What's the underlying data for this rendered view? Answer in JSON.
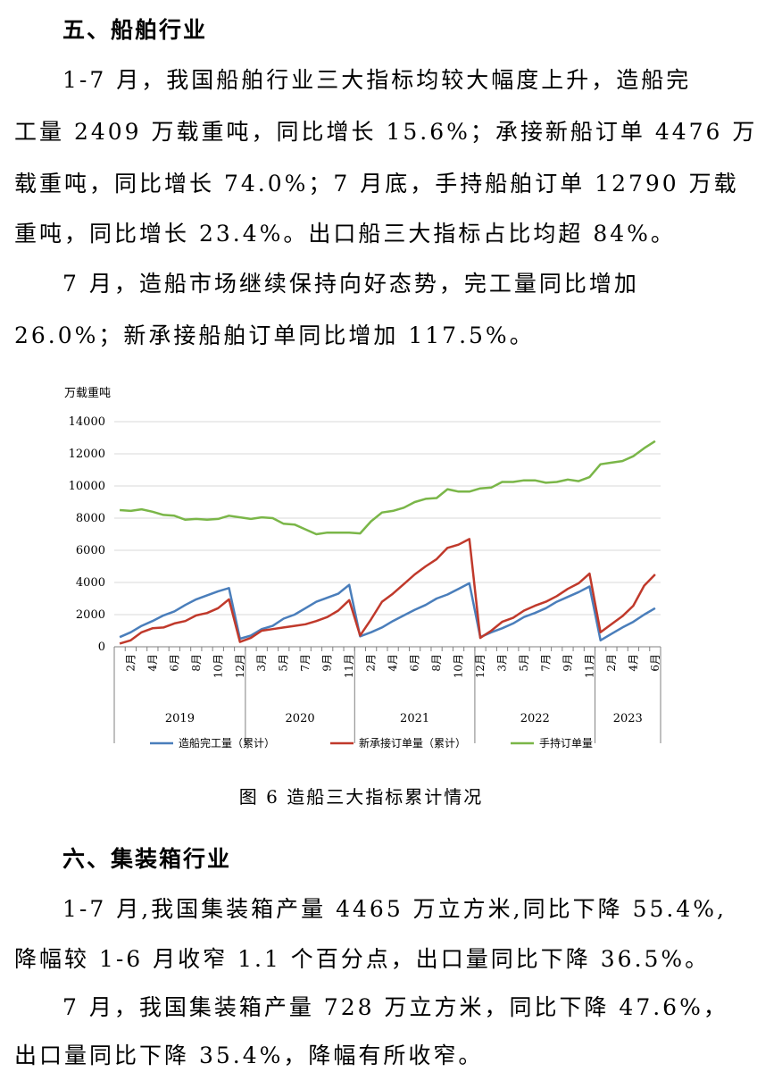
{
  "section5": {
    "title": "五、船舶行业",
    "p1": [
      "1-7 月，我国船舶行业三大指标均较大幅度上升，造船完",
      "工量 2409 万载重吨，同比增长 15.6%；承接新船订单 4476 万",
      "载重吨，同比增长 74.0%；7 月底，手持船舶订单 12790 万载",
      "重吨，同比增长 23.4%。出口船三大指标占比均超 84%。"
    ],
    "p2": [
      "7 月，造船市场继续保持向好态势，完工量同比增加",
      "26.0%；新承接船舶订单同比增加 117.5%。"
    ]
  },
  "figure": {
    "caption": "图 6  造船三大指标累计情况"
  },
  "chart_data": {
    "type": "line",
    "ylabel": "万载重吨",
    "ylim": [
      0,
      14000
    ],
    "yticks": [
      0,
      2000,
      4000,
      6000,
      8000,
      10000,
      12000,
      14000
    ],
    "grid": true,
    "legend_position": "bottom",
    "x_tick_labels": [
      {
        "index": 1,
        "label": "2月"
      },
      {
        "index": 3,
        "label": "4月"
      },
      {
        "index": 5,
        "label": "6月"
      },
      {
        "index": 7,
        "label": "8月"
      },
      {
        "index": 9,
        "label": "10月"
      },
      {
        "index": 11,
        "label": "12月"
      },
      {
        "index": 13,
        "label": "3月"
      },
      {
        "index": 15,
        "label": "5月"
      },
      {
        "index": 17,
        "label": "7月"
      },
      {
        "index": 19,
        "label": "9月"
      },
      {
        "index": 21,
        "label": "11月"
      },
      {
        "index": 23,
        "label": "2月"
      },
      {
        "index": 25,
        "label": "4月"
      },
      {
        "index": 27,
        "label": "6月"
      },
      {
        "index": 29,
        "label": "8月"
      },
      {
        "index": 31,
        "label": "10月"
      },
      {
        "index": 33,
        "label": "12月"
      },
      {
        "index": 35,
        "label": "3月"
      },
      {
        "index": 37,
        "label": "5月"
      },
      {
        "index": 39,
        "label": "7月"
      },
      {
        "index": 41,
        "label": "9月"
      },
      {
        "index": 43,
        "label": "11月"
      },
      {
        "index": 45,
        "label": "2月"
      },
      {
        "index": 47,
        "label": "4月"
      },
      {
        "index": 49,
        "label": "6月"
      }
    ],
    "year_groups": [
      {
        "label": "2019",
        "start": 0,
        "end": 11
      },
      {
        "label": "2020",
        "start": 12,
        "end": 21
      },
      {
        "label": "2021",
        "start": 22,
        "end": 32
      },
      {
        "label": "2022",
        "start": 33,
        "end": 43
      },
      {
        "label": "2023",
        "start": 44,
        "end": 49
      }
    ],
    "series": [
      {
        "name": "造船完工量（累计）",
        "color": "#4a7ebb",
        "values": [
          600,
          900,
          1300,
          1600,
          1950,
          2200,
          2600,
          2950,
          3200,
          3450,
          3650,
          500,
          700,
          1100,
          1300,
          1750,
          2000,
          2400,
          2800,
          3050,
          3300,
          3850,
          650,
          900,
          1200,
          1600,
          1950,
          2300,
          2600,
          3000,
          3250,
          3600,
          3950,
          600,
          900,
          1150,
          1450,
          1850,
          2100,
          2400,
          2800,
          3100,
          3400,
          3750,
          400,
          800,
          1200,
          1550,
          2000,
          2400
        ]
      },
      {
        "name": "新承接订单量（累计）",
        "color": "#c0392b",
        "values": [
          200,
          400,
          900,
          1150,
          1200,
          1450,
          1600,
          1950,
          2100,
          2400,
          2950,
          300,
          550,
          1000,
          1100,
          1200,
          1300,
          1400,
          1600,
          1850,
          2250,
          2900,
          700,
          1700,
          2800,
          3300,
          3900,
          4500,
          5000,
          5450,
          6150,
          6350,
          6700,
          550,
          1000,
          1550,
          1800,
          2250,
          2550,
          2800,
          3150,
          3600,
          3950,
          4550,
          900,
          1400,
          1900,
          2550,
          3800,
          4500
        ]
      },
      {
        "name": "手持订单量",
        "color": "#7ab648",
        "values": [
          8500,
          8450,
          8550,
          8400,
          8200,
          8150,
          7900,
          7950,
          7900,
          7950,
          8150,
          8050,
          7950,
          8050,
          8000,
          7650,
          7600,
          7300,
          7000,
          7100,
          7100,
          7100,
          7050,
          7800,
          8350,
          8450,
          8650,
          9000,
          9200,
          9250,
          9800,
          9650,
          9650,
          9850,
          9900,
          10250,
          10250,
          10350,
          10350,
          10200,
          10250,
          10400,
          10300,
          10550,
          11350,
          11450,
          11550,
          11850,
          12350,
          12790
        ]
      }
    ]
  },
  "section6": {
    "title": "六、集装箱行业",
    "p1": [
      "1-7 月,我国集装箱产量 4465 万立方米,同比下降 55.4%,",
      "降幅较 1-6 月收窄 1.1 个百分点，出口量同比下降 36.5%。"
    ],
    "p2": [
      "7 月，我国集装箱产量 728 万立方米，同比下降 47.6%，",
      "出口量同比下降 35.4%，降幅有所收窄。"
    ]
  }
}
